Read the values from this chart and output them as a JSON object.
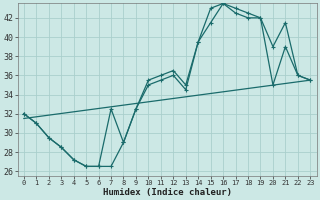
{
  "xlabel": "Humidex (Indice chaleur)",
  "bg_color": "#cce8e5",
  "grid_color": "#aacfcc",
  "line_color": "#1a6b6b",
  "xlim": [
    -0.5,
    23.5
  ],
  "ylim": [
    25.5,
    43.5
  ],
  "yticks": [
    26,
    28,
    30,
    32,
    34,
    36,
    38,
    40,
    42
  ],
  "xticks": [
    0,
    1,
    2,
    3,
    4,
    5,
    6,
    7,
    8,
    9,
    10,
    11,
    12,
    13,
    14,
    15,
    16,
    17,
    18,
    19,
    20,
    21,
    22,
    23
  ],
  "curve1_x": [
    0,
    1,
    2,
    3,
    4,
    5,
    6,
    7,
    8,
    9,
    10,
    11,
    12,
    13,
    14,
    15,
    16,
    17,
    18,
    19,
    20,
    21,
    22,
    23
  ],
  "curve1_y": [
    32,
    31,
    29.5,
    28.5,
    27.2,
    26.5,
    26.5,
    26.5,
    29,
    32.5,
    35.5,
    36,
    36.5,
    35,
    39.5,
    43,
    43.5,
    43,
    42.5,
    42,
    39,
    41.5,
    36,
    35.5
  ],
  "curve2_x": [
    0,
    1,
    2,
    3,
    4,
    5,
    6,
    7,
    8,
    9,
    10,
    11,
    12,
    13,
    14,
    15,
    16,
    17,
    18,
    19,
    20,
    21,
    22,
    23
  ],
  "curve2_y": [
    32,
    31,
    29.5,
    28.5,
    27.2,
    26.5,
    26.5,
    32.5,
    29,
    32.5,
    35,
    35.5,
    36,
    34.5,
    39.5,
    41.5,
    43.5,
    42.5,
    42,
    42,
    35,
    39,
    36,
    35.5
  ],
  "curve3_x": [
    0,
    23
  ],
  "curve3_y": [
    31.5,
    35.5
  ],
  "marker_size": 3.0
}
